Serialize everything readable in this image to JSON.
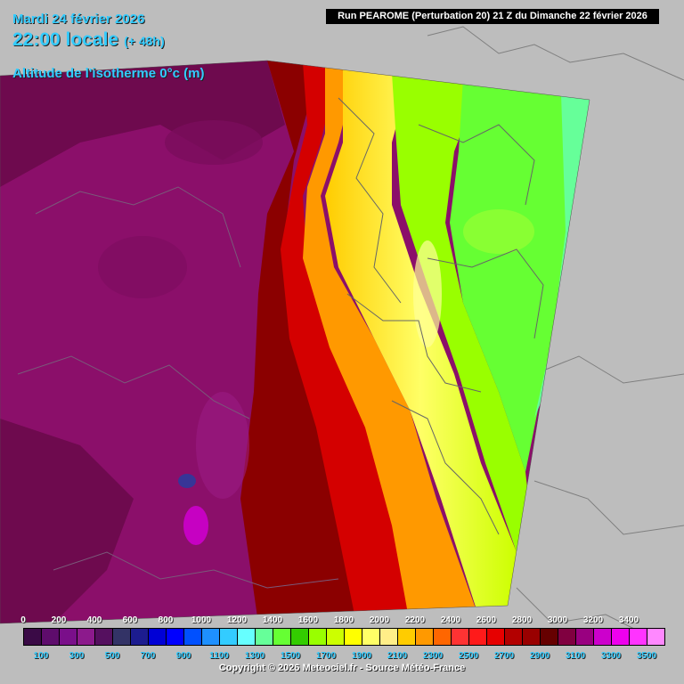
{
  "header": {
    "date": "Mardi 24 février 2026",
    "time": "22:00 locale",
    "lead": "(+ 48h)",
    "parameter": "Altitude de l'isotherme 0°c (m)",
    "run": "Run PEAROME (Perturbation 20) 21 Z du Dimanche 22 février 2026"
  },
  "legend": {
    "labels_top": [
      "0",
      "200",
      "400",
      "600",
      "800",
      "1000",
      "1200",
      "1400",
      "1600",
      "1800",
      "2000",
      "2200",
      "2400",
      "2600",
      "2800",
      "3000",
      "3200",
      "3400"
    ],
    "labels_bottom": [
      "100",
      "300",
      "500",
      "700",
      "900",
      "1100",
      "1300",
      "1500",
      "1700",
      "1900",
      "2100",
      "2300",
      "2500",
      "2700",
      "2900",
      "3100",
      "3300",
      "3500"
    ],
    "colors": [
      "#3a0a46",
      "#5e0c6c",
      "#7a0f8a",
      "#8c1a8c",
      "#55105f",
      "#333366",
      "#1c1c8f",
      "#0000d6",
      "#0000ff",
      "#0050ff",
      "#1e90ff",
      "#33ccff",
      "#66ffff",
      "#66ff99",
      "#66ff33",
      "#33cc00",
      "#99ff00",
      "#ccff00",
      "#ffff00",
      "#ffff66",
      "#ffee88",
      "#ffcc00",
      "#ff9900",
      "#ff6600",
      "#ff3333",
      "#ff1a1a",
      "#e60000",
      "#b30000",
      "#990000",
      "#660000",
      "#800040",
      "#990080",
      "#cc00cc",
      "#ee00ee",
      "#ff33ff",
      "#ff88ff"
    ]
  },
  "map_colors": {
    "background": "#bdbdbd",
    "west_base": "#8b0f6a",
    "west_dark": "#6e0a4e",
    "dark_red": "#8b0000",
    "red": "#d40000",
    "orange": "#ff9900",
    "yellow": "#ffff33",
    "light_yellow": "#ffff99",
    "lime": "#99ff00",
    "green": "#66ff33",
    "cyan_green": "#66ff99",
    "borders": "#777777"
  },
  "footer": {
    "copyright": "Copyright © 2026 Meteociel.fr - Source Météo-France"
  }
}
